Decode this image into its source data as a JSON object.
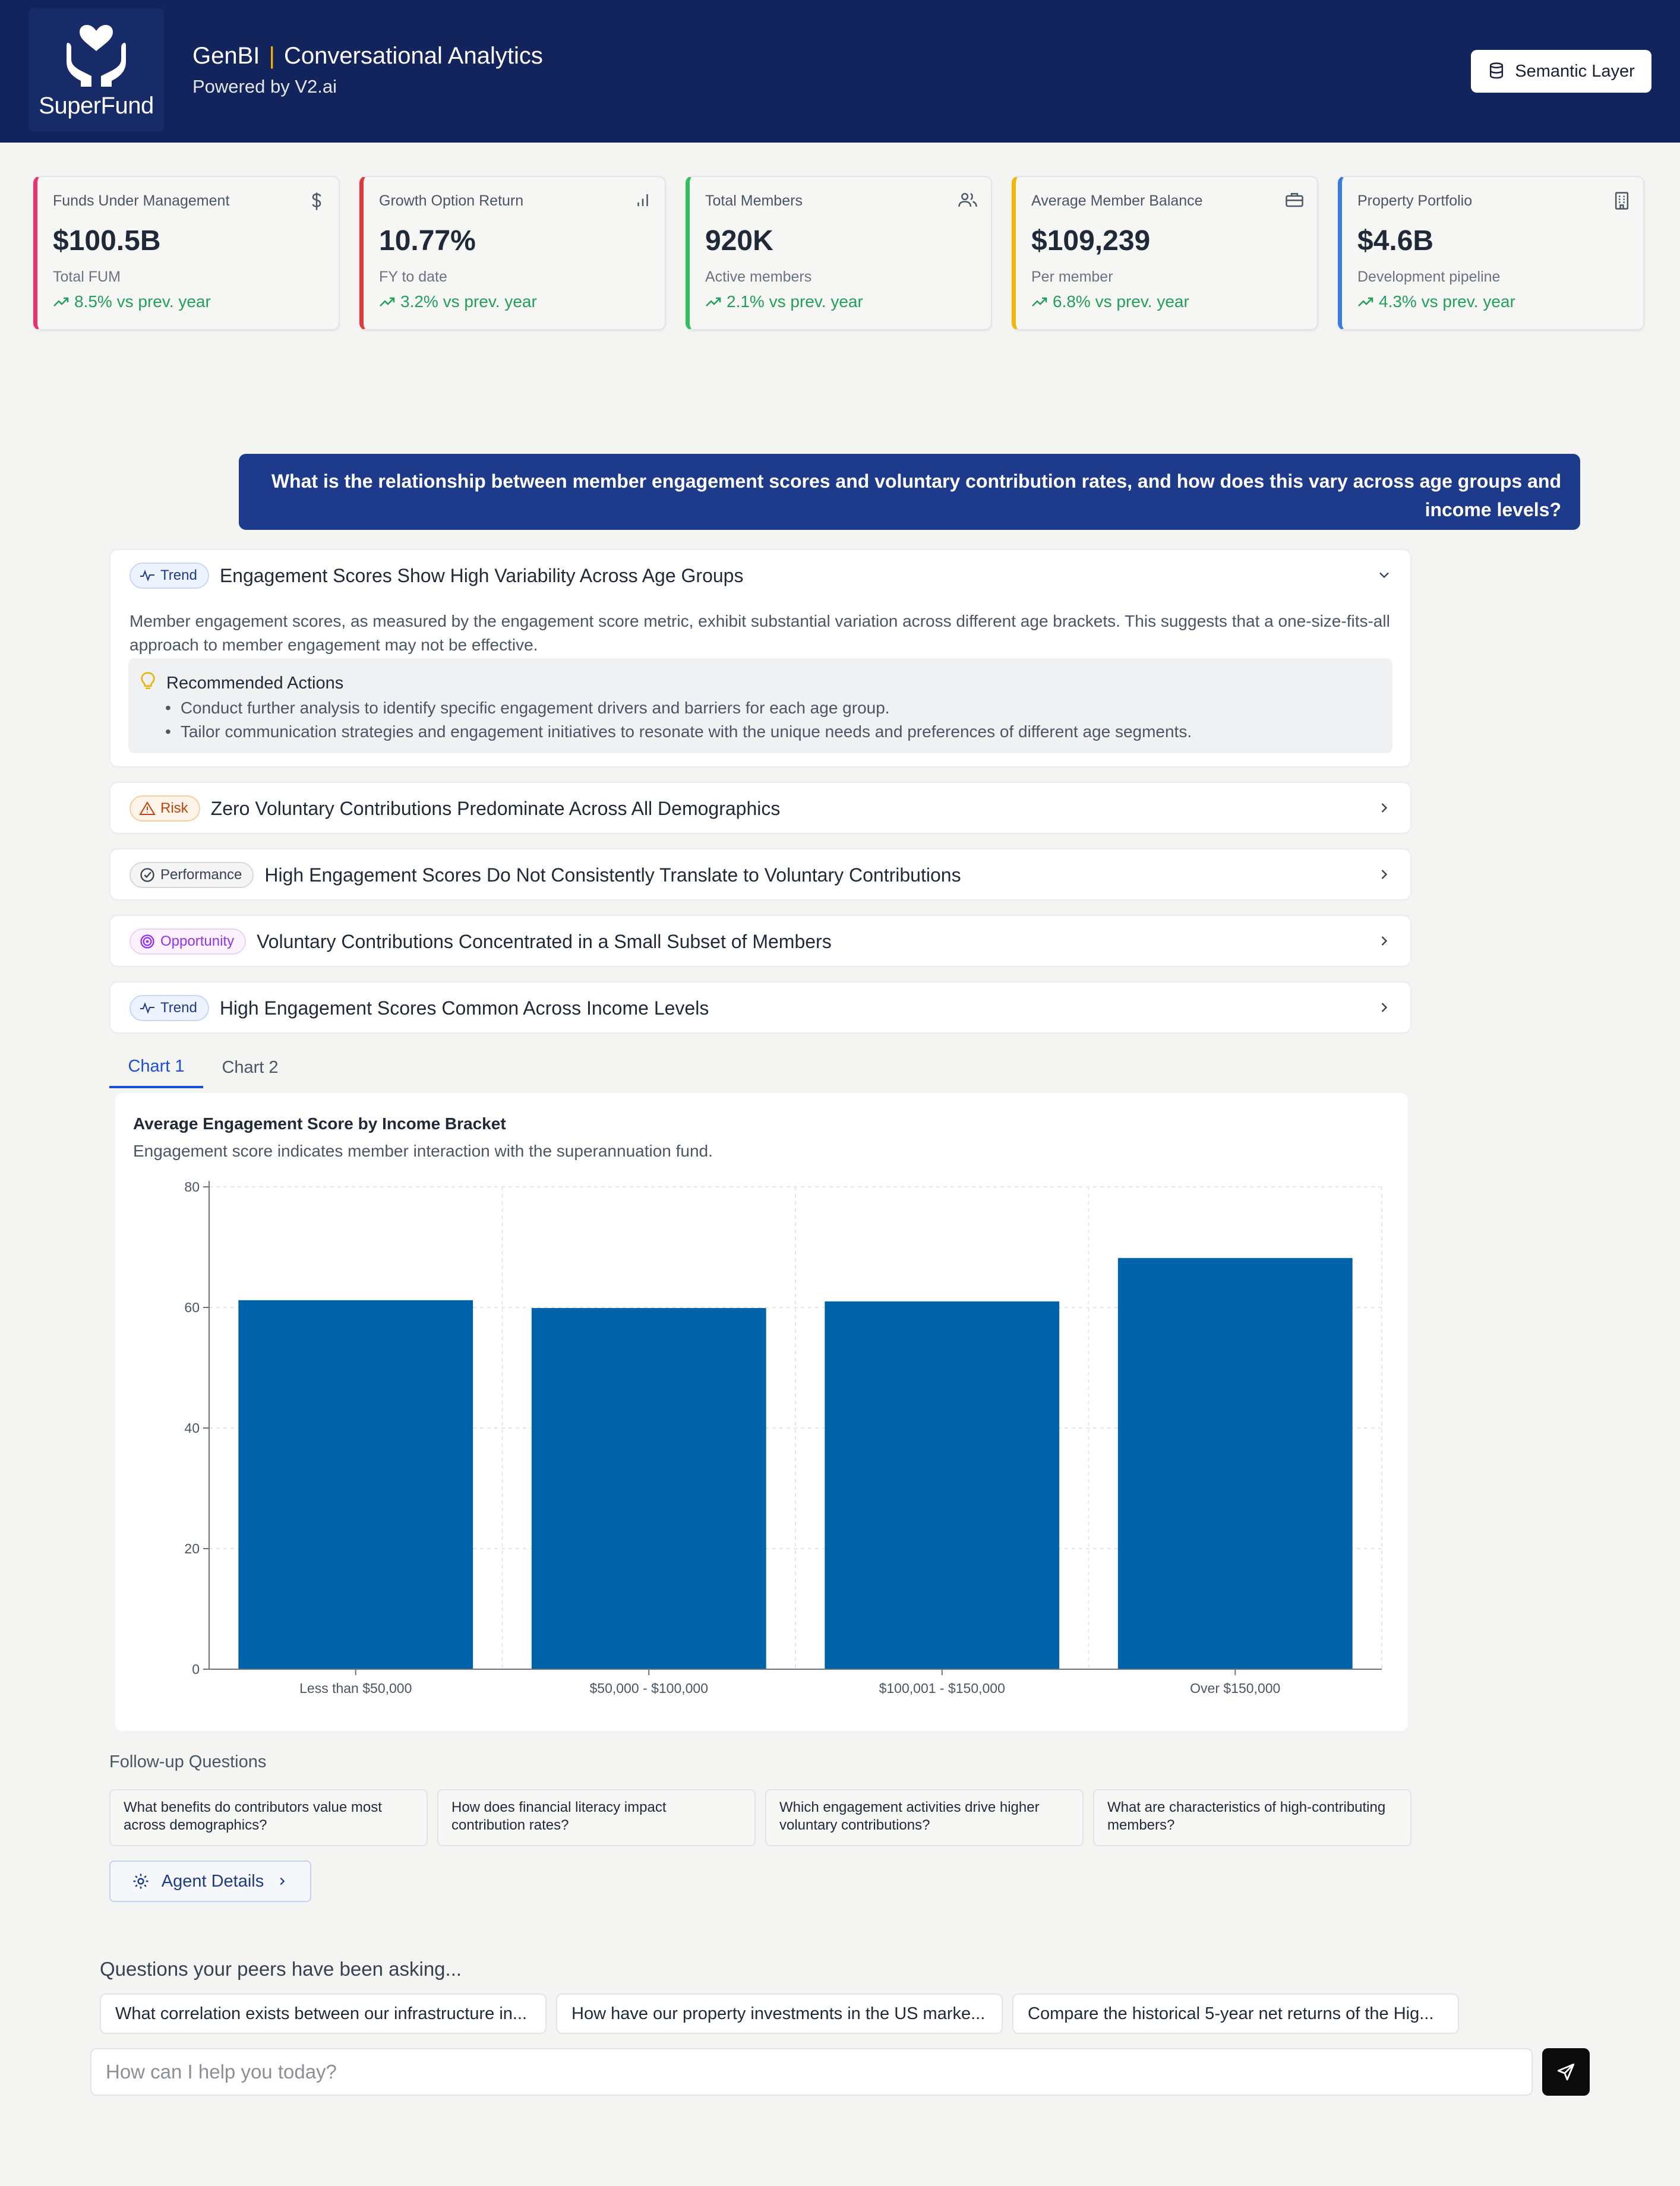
{
  "header": {
    "logo_text": "SuperFund",
    "app_name": "GenBI",
    "separator": "|",
    "app_title": "Conversational Analytics",
    "subtitle": "Powered by V2.ai",
    "semantic_button": "Semantic Layer"
  },
  "kpis": [
    {
      "label": "Funds Under Management",
      "value": "$100.5B",
      "sub": "Total FUM",
      "trend": "8.5% vs prev. year",
      "icon": "dollar-icon",
      "accent": "#e8336f"
    },
    {
      "label": "Growth Option Return",
      "value": "10.77%",
      "sub": "FY to date",
      "trend": "3.2% vs prev. year",
      "icon": "bar-chart-icon",
      "accent": "#e0393e"
    },
    {
      "label": "Total Members",
      "value": "920K",
      "sub": "Active members",
      "trend": "2.1% vs prev. year",
      "icon": "users-icon",
      "accent": "#2fbf5f"
    },
    {
      "label": "Average Member Balance",
      "value": "$109,239",
      "sub": "Per member",
      "trend": "6.8% vs prev. year",
      "icon": "briefcase-icon",
      "accent": "#f2b705"
    },
    {
      "label": "Property Portfolio",
      "value": "$4.6B",
      "sub": "Development pipeline",
      "trend": "4.3% vs prev. year",
      "icon": "building-icon",
      "accent": "#3b7ae0"
    }
  ],
  "question": "What is the relationship between member engagement scores and voluntary contribution rates, and how does this vary across age groups and income levels?",
  "insights": [
    {
      "badge": "Trend",
      "title": "Engagement Scores Show High Variability Across Age Groups",
      "body": "Member engagement scores, as measured by the engagement score metric, exhibit substantial variation across different age brackets. This suggests that a one-size-fits-all approach to member engagement may not be effective.",
      "rec_title": "Recommended Actions",
      "rec_items": [
        "Conduct further analysis to identify specific engagement drivers and barriers for each age group.",
        "Tailor communication strategies and engagement initiatives to resonate with the unique needs and preferences of different age segments."
      ]
    },
    {
      "badge": "Risk",
      "title": "Zero Voluntary Contributions Predominate Across All Demographics"
    },
    {
      "badge": "Performance",
      "title": "High Engagement Scores Do Not Consistently Translate to Voluntary Contributions"
    },
    {
      "badge": "Opportunity",
      "title": "Voluntary Contributions Concentrated in a Small Subset of Members"
    },
    {
      "badge": "Trend",
      "title": "High Engagement Scores Common Across Income Levels"
    }
  ],
  "tabs": [
    "Chart 1",
    "Chart 2"
  ],
  "chart_data": {
    "type": "bar",
    "title": "Average Engagement Score by Income Bracket",
    "subtitle": "Engagement score indicates member interaction with the superannuation fund.",
    "categories": [
      "Less than $50,000",
      "$50,000 - $100,000",
      "$100,001 - $150,000",
      "Over $150,000"
    ],
    "values": [
      61.2,
      59.9,
      61.0,
      68.2
    ],
    "ylim": [
      0,
      80
    ],
    "yticks": [
      0,
      20,
      40,
      60,
      80
    ],
    "grid": true,
    "bar_color": "#0062a8"
  },
  "followups": {
    "label": "Follow-up Questions",
    "items": [
      "What benefits do contributors value most across demographics?",
      "How does financial literacy impact contribution rates?",
      "Which engagement activities drive higher voluntary contributions?",
      "What are characteristics of high-contributing members?"
    ]
  },
  "agent_details": "Agent Details",
  "peers": {
    "label": "Questions your peers have been asking...",
    "items": [
      "What correlation exists between our infrastructure in...",
      "How have our property investments in the US marke...",
      "Compare the historical 5-year net returns of the Hig..."
    ]
  },
  "chat": {
    "placeholder": "How can I help you today?"
  }
}
